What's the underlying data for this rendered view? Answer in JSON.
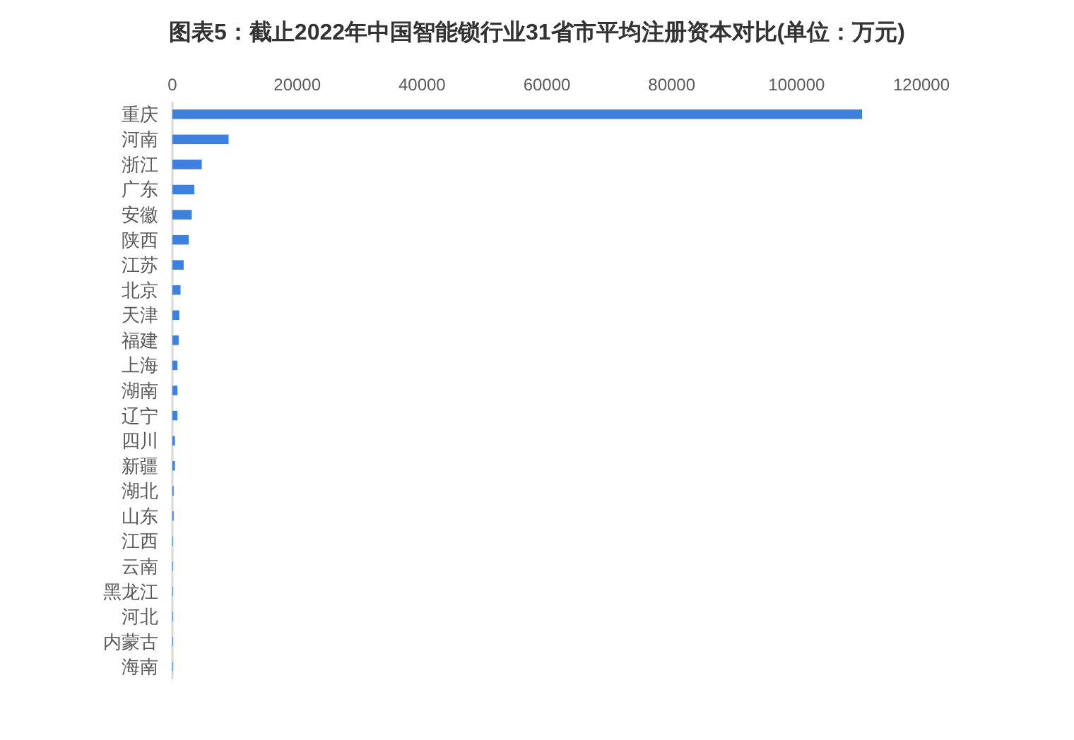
{
  "chart_data": {
    "type": "bar",
    "orientation": "horizontal",
    "title": "图表5：截止2022年中国智能锁行业31省市平均注册资本对比(单位：万元)",
    "categories": [
      "重庆",
      "河南",
      "浙江",
      "广东",
      "安徽",
      "陕西",
      "江苏",
      "北京",
      "天津",
      "福建",
      "上海",
      "湖南",
      "辽宁",
      "四川",
      "新疆",
      "湖北",
      "山东",
      "江西",
      "云南",
      "黑龙江",
      "河北",
      "内蒙古",
      "海南"
    ],
    "values": [
      110500,
      9000,
      4700,
      3500,
      3100,
      2600,
      1800,
      1300,
      1100,
      1000,
      800,
      800,
      800,
      400,
      400,
      200,
      200,
      100,
      100,
      100,
      100,
      100,
      100
    ],
    "color": "#3e80de",
    "xlim": [
      0,
      120000
    ],
    "xticks": [
      0,
      20000,
      40000,
      60000,
      80000,
      100000,
      120000
    ]
  }
}
